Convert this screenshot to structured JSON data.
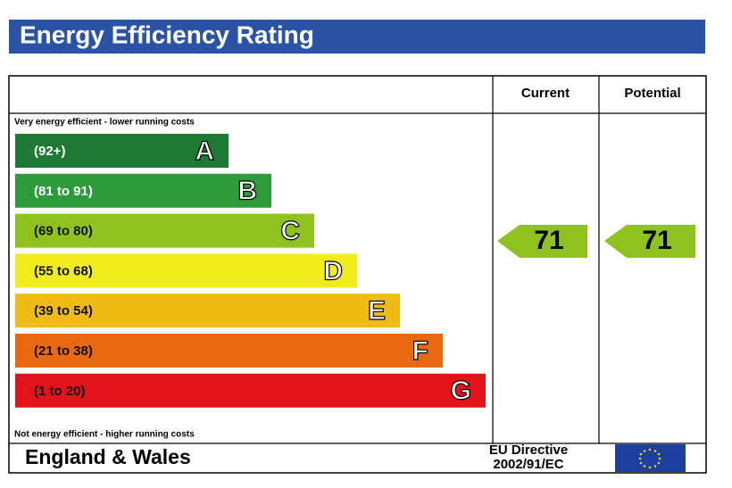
{
  "title": "Energy Efficiency Rating",
  "columns": [
    "Current",
    "Potential"
  ],
  "top_note": "Very energy efficient - lower running costs",
  "bottom_note": "Not energy efficient - higher running costs",
  "bands": [
    {
      "range": "(92+)",
      "letter": "A",
      "color": "#1d7a34"
    },
    {
      "range": "(81 to 91)",
      "letter": "B",
      "color": "#2c9b3b"
    },
    {
      "range": "(69 to 80)",
      "letter": "C",
      "color": "#8dc21f"
    },
    {
      "range": "(55 to 68)",
      "letter": "D",
      "color": "#f2ec1c"
    },
    {
      "range": "(39 to 54)",
      "letter": "E",
      "color": "#f1bb16"
    },
    {
      "range": "(21 to 38)",
      "letter": "F",
      "color": "#e9690e"
    },
    {
      "range": "(1 to 20)",
      "letter": "G",
      "color": "#e3131b"
    }
  ],
  "current": 71,
  "potential": 71,
  "footer": {
    "region": "England & Wales",
    "directive": [
      "EU Directive",
      "2002/91/EC"
    ]
  }
}
